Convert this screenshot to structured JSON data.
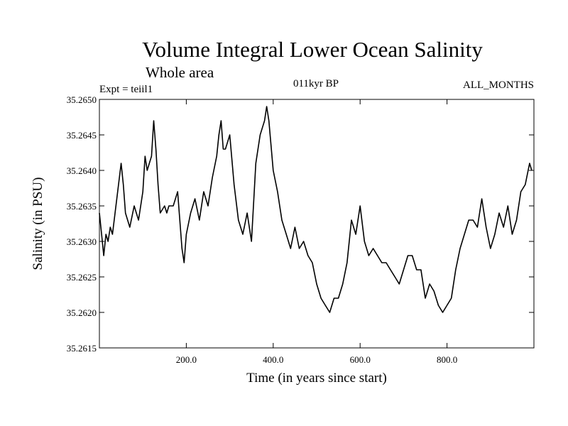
{
  "chart_data": {
    "type": "line",
    "title": "Volume Integral Lower Ocean Salinity",
    "subtitle": "Whole area",
    "experiment_label": "Expt = teiil1",
    "period_label": "011kyr BP",
    "months_label": "ALL_MONTHS",
    "xlabel": "Time (in years since start)",
    "ylabel": "Salinity (in PSU)",
    "xlim": [
      0,
      1000
    ],
    "ylim": [
      35.2615,
      35.265
    ],
    "x_ticks": [
      {
        "value": 200,
        "label": "200.0"
      },
      {
        "value": 400,
        "label": "400.0"
      },
      {
        "value": 600,
        "label": "600.0"
      },
      {
        "value": 800,
        "label": "800.0"
      }
    ],
    "y_ticks": [
      {
        "value": 35.2615,
        "label": "35.2615"
      },
      {
        "value": 35.262,
        "label": "35.2620"
      },
      {
        "value": 35.2625,
        "label": "35.2625"
      },
      {
        "value": 35.263,
        "label": "35.2630"
      },
      {
        "value": 35.2635,
        "label": "35.2635"
      },
      {
        "value": 35.264,
        "label": "35.2640"
      },
      {
        "value": 35.2645,
        "label": "35.2645"
      },
      {
        "value": 35.265,
        "label": "35.2650"
      }
    ],
    "series": [
      {
        "x": [
          0,
          5,
          10,
          15,
          20,
          25,
          30,
          40,
          50,
          55,
          60,
          70,
          80,
          90,
          100,
          105,
          110,
          120,
          125,
          130,
          135,
          140,
          150,
          155,
          160,
          170,
          180,
          190,
          195,
          200,
          210,
          220,
          230,
          240,
          250,
          260,
          270,
          275,
          280,
          285,
          290,
          300,
          310,
          320,
          330,
          340,
          350,
          360,
          370,
          375,
          380,
          385,
          390,
          400,
          410,
          420,
          430,
          440,
          450,
          460,
          470,
          480,
          490,
          500,
          510,
          520,
          530,
          540,
          550,
          560,
          570,
          580,
          590,
          600,
          610,
          620,
          630,
          640,
          650,
          660,
          670,
          680,
          690,
          700,
          710,
          720,
          730,
          740,
          750,
          760,
          770,
          780,
          790,
          800,
          810,
          820,
          830,
          840,
          850,
          860,
          870,
          880,
          890,
          900,
          910,
          920,
          930,
          940,
          950,
          960,
          970,
          980,
          990,
          995
        ],
        "y": [
          35.2634,
          35.2631,
          35.2628,
          35.2631,
          35.263,
          35.2632,
          35.2631,
          35.2636,
          35.2641,
          35.2638,
          35.2634,
          35.2632,
          35.2635,
          35.2633,
          35.2637,
          35.2642,
          35.264,
          35.2642,
          35.2647,
          35.2643,
          35.2638,
          35.2634,
          35.2635,
          35.2634,
          35.2635,
          35.2635,
          35.2637,
          35.2629,
          35.2627,
          35.2631,
          35.2634,
          35.2636,
          35.2633,
          35.2637,
          35.2635,
          35.2639,
          35.2642,
          35.2645,
          35.2647,
          35.2643,
          35.2643,
          35.2645,
          35.2638,
          35.2633,
          35.2631,
          35.2634,
          35.263,
          35.2641,
          35.2645,
          35.2646,
          35.2647,
          35.2649,
          35.2647,
          35.264,
          35.2637,
          35.2633,
          35.2631,
          35.2629,
          35.2632,
          35.2629,
          35.263,
          35.2628,
          35.2627,
          35.2624,
          35.2622,
          35.2621,
          35.262,
          35.2622,
          35.2622,
          35.2624,
          35.2627,
          35.2633,
          35.2631,
          35.2635,
          35.263,
          35.2628,
          35.2629,
          35.2628,
          35.2627,
          35.2627,
          35.2626,
          35.2625,
          35.2624,
          35.2626,
          35.2628,
          35.2628,
          35.2626,
          35.2626,
          35.2622,
          35.2624,
          35.2623,
          35.2621,
          35.262,
          35.2621,
          35.2622,
          35.2626,
          35.2629,
          35.2631,
          35.2633,
          35.2633,
          35.2632,
          35.2636,
          35.2632,
          35.2629,
          35.2631,
          35.2634,
          35.2632,
          35.2635,
          35.2631,
          35.2633,
          35.2637,
          35.2638,
          35.2641,
          35.264
        ]
      }
    ]
  }
}
